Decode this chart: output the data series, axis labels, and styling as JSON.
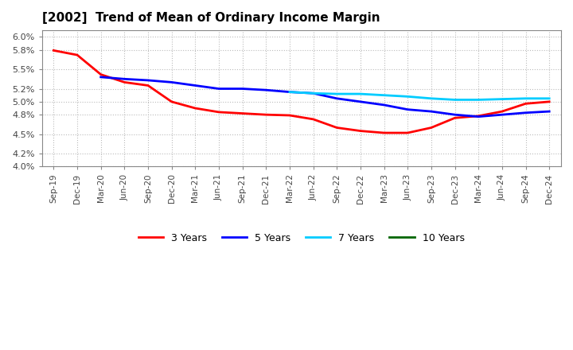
{
  "title": "[2002]  Trend of Mean of Ordinary Income Margin",
  "x_labels": [
    "Sep-19",
    "Dec-19",
    "Mar-20",
    "Jun-20",
    "Sep-20",
    "Dec-20",
    "Mar-21",
    "Jun-21",
    "Sep-21",
    "Dec-21",
    "Mar-22",
    "Jun-22",
    "Sep-22",
    "Dec-22",
    "Mar-23",
    "Jun-23",
    "Sep-23",
    "Dec-23",
    "Mar-24",
    "Jun-24",
    "Sep-24",
    "Dec-24"
  ],
  "series": {
    "3 Years": {
      "color": "#FF0000",
      "data": [
        5.79,
        5.72,
        5.42,
        5.3,
        5.25,
        5.0,
        4.9,
        4.84,
        4.82,
        4.8,
        4.79,
        4.73,
        4.6,
        4.55,
        4.52,
        4.52,
        4.6,
        4.75,
        4.78,
        4.85,
        4.97,
        5.0
      ]
    },
    "5 Years": {
      "color": "#0000FF",
      "data": [
        null,
        null,
        5.38,
        5.35,
        5.33,
        5.3,
        5.25,
        5.2,
        5.2,
        5.18,
        5.15,
        5.13,
        5.05,
        5.0,
        4.95,
        4.88,
        4.85,
        4.8,
        4.77,
        4.8,
        4.83,
        4.85
      ]
    },
    "7 Years": {
      "color": "#00CCFF",
      "data": [
        null,
        null,
        null,
        null,
        null,
        null,
        null,
        null,
        null,
        null,
        5.15,
        5.13,
        5.12,
        5.12,
        5.1,
        5.08,
        5.05,
        5.03,
        5.03,
        5.04,
        5.05,
        5.05
      ]
    },
    "10 Years": {
      "color": "#006600",
      "data": [
        null,
        null,
        null,
        null,
        null,
        null,
        null,
        null,
        null,
        null,
        null,
        null,
        null,
        null,
        null,
        null,
        null,
        null,
        null,
        null,
        null,
        null
      ]
    }
  },
  "ylim": [
    4.0,
    6.1
  ],
  "yticks": [
    4.0,
    4.2,
    4.5,
    4.8,
    5.0,
    5.2,
    5.5,
    5.8,
    6.0
  ],
  "background_color": "#FFFFFF",
  "grid_color": "#AAAAAA"
}
